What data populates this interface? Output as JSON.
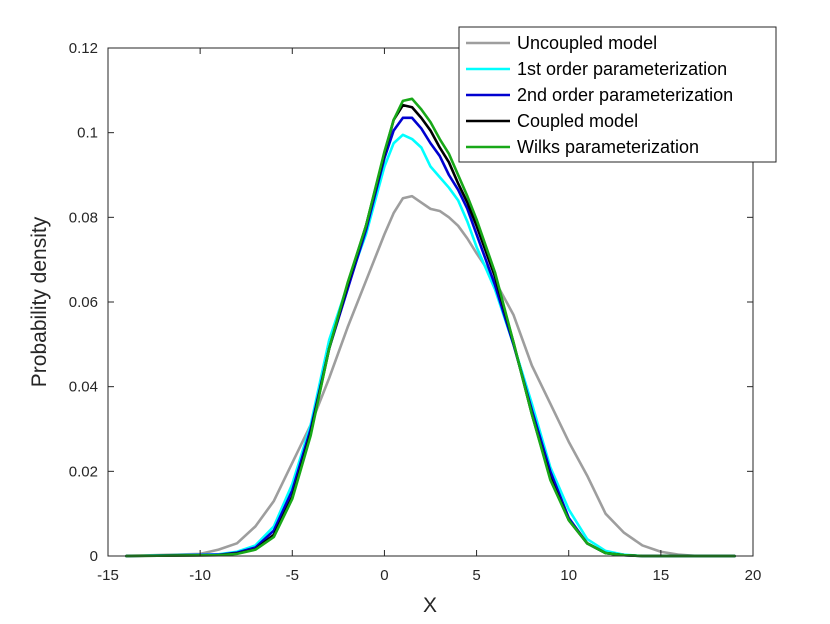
{
  "chart_data": {
    "type": "line",
    "title": "",
    "xlabel": "X",
    "ylabel": "Probability density",
    "xlim": [
      -15,
      20
    ],
    "ylim": [
      0,
      0.12
    ],
    "xticks": [
      -15,
      -10,
      -5,
      0,
      5,
      10,
      15,
      20
    ],
    "yticks": [
      0,
      0.02,
      0.04,
      0.06,
      0.08,
      0.1,
      0.12
    ],
    "xtick_labels": [
      "-15",
      "-10",
      "-5",
      "0",
      "5",
      "10",
      "15",
      "20"
    ],
    "ytick_labels": [
      "0",
      "0.02",
      "0.04",
      "0.06",
      "0.08",
      "0.1",
      "0.12"
    ],
    "grid": false,
    "legend_position": "top-right",
    "series": [
      {
        "name": "Uncoupled model",
        "color": "#9e9e9e",
        "x": [
          -14,
          -10,
          -9,
          -8,
          -7,
          -6,
          -5,
          -4,
          -3,
          -2,
          -1,
          0,
          0.5,
          1,
          1.5,
          2,
          2.5,
          3,
          3.5,
          4,
          4.5,
          5,
          6,
          7,
          8,
          9,
          10,
          11,
          12,
          13,
          14,
          15,
          16,
          17,
          19
        ],
        "y": [
          0,
          0.0005,
          0.0015,
          0.003,
          0.007,
          0.013,
          0.022,
          0.031,
          0.042,
          0.054,
          0.065,
          0.076,
          0.081,
          0.0845,
          0.085,
          0.0835,
          0.082,
          0.0815,
          0.08,
          0.078,
          0.075,
          0.0715,
          0.065,
          0.057,
          0.045,
          0.036,
          0.027,
          0.019,
          0.01,
          0.0055,
          0.0025,
          0.001,
          0.0003,
          0,
          0
        ]
      },
      {
        "name": "1st order parameterization",
        "color": "#00ffff",
        "x": [
          -14,
          -9,
          -8,
          -7,
          -6,
          -5,
          -4,
          -3,
          -2,
          -1,
          0,
          0.5,
          1,
          1.5,
          2,
          2.5,
          3,
          3.5,
          4,
          4.5,
          5,
          6,
          7,
          8,
          9,
          10,
          11,
          12,
          13,
          14,
          19
        ],
        "y": [
          0,
          0.0004,
          0.001,
          0.0025,
          0.007,
          0.017,
          0.031,
          0.051,
          0.064,
          0.076,
          0.092,
          0.0975,
          0.0995,
          0.0985,
          0.0965,
          0.092,
          0.0895,
          0.087,
          0.084,
          0.079,
          0.073,
          0.063,
          0.05,
          0.036,
          0.021,
          0.011,
          0.004,
          0.0012,
          0.0003,
          0,
          0
        ]
      },
      {
        "name": "2nd order parameterization",
        "color": "#0000d0",
        "x": [
          -14,
          -9,
          -8,
          -7,
          -6,
          -5,
          -4,
          -3,
          -2,
          -1,
          0,
          0.5,
          1,
          1.5,
          2,
          2.5,
          3,
          3.5,
          4,
          4.5,
          5,
          6,
          7,
          8,
          9,
          10,
          11,
          12,
          13,
          14,
          19
        ],
        "y": [
          0,
          0.0003,
          0.0008,
          0.002,
          0.006,
          0.0155,
          0.03,
          0.049,
          0.063,
          0.077,
          0.094,
          0.1005,
          0.1035,
          0.1035,
          0.101,
          0.0975,
          0.0945,
          0.09,
          0.0865,
          0.082,
          0.076,
          0.064,
          0.05,
          0.0345,
          0.02,
          0.009,
          0.003,
          0.0007,
          0.0002,
          0,
          0
        ]
      },
      {
        "name": "Coupled model",
        "color": "#000000",
        "x": [
          -14,
          -9,
          -8,
          -7,
          -6,
          -5,
          -4,
          -3,
          -2,
          -1,
          0,
          0.5,
          1,
          1.5,
          2,
          2.5,
          3,
          3.5,
          4,
          4.5,
          5,
          6,
          7,
          8,
          9,
          10,
          11,
          12,
          13,
          14,
          19
        ],
        "y": [
          0,
          0.0002,
          0.0006,
          0.0016,
          0.005,
          0.014,
          0.029,
          0.049,
          0.064,
          0.078,
          0.095,
          0.103,
          0.1065,
          0.106,
          0.1035,
          0.1005,
          0.0965,
          0.093,
          0.088,
          0.0835,
          0.078,
          0.066,
          0.0505,
          0.0335,
          0.0185,
          0.0085,
          0.003,
          0.0007,
          0.0002,
          0,
          0
        ]
      },
      {
        "name": "Wilks parameterization",
        "color": "#18a818",
        "x": [
          -14,
          -9,
          -8,
          -7,
          -6,
          -5,
          -4,
          -3,
          -2,
          -1,
          0,
          0.5,
          1,
          1.5,
          2,
          2.5,
          3,
          3.5,
          4,
          4.5,
          5,
          6,
          7,
          8,
          9,
          10,
          11,
          12,
          13,
          14,
          19
        ],
        "y": [
          0,
          0.0002,
          0.0005,
          0.0015,
          0.0045,
          0.0135,
          0.0285,
          0.049,
          0.0645,
          0.078,
          0.0955,
          0.103,
          0.1075,
          0.108,
          0.1055,
          0.1025,
          0.0985,
          0.095,
          0.09,
          0.085,
          0.0795,
          0.067,
          0.0505,
          0.0335,
          0.018,
          0.0085,
          0.003,
          0.0007,
          0.0002,
          0,
          0
        ]
      }
    ]
  }
}
